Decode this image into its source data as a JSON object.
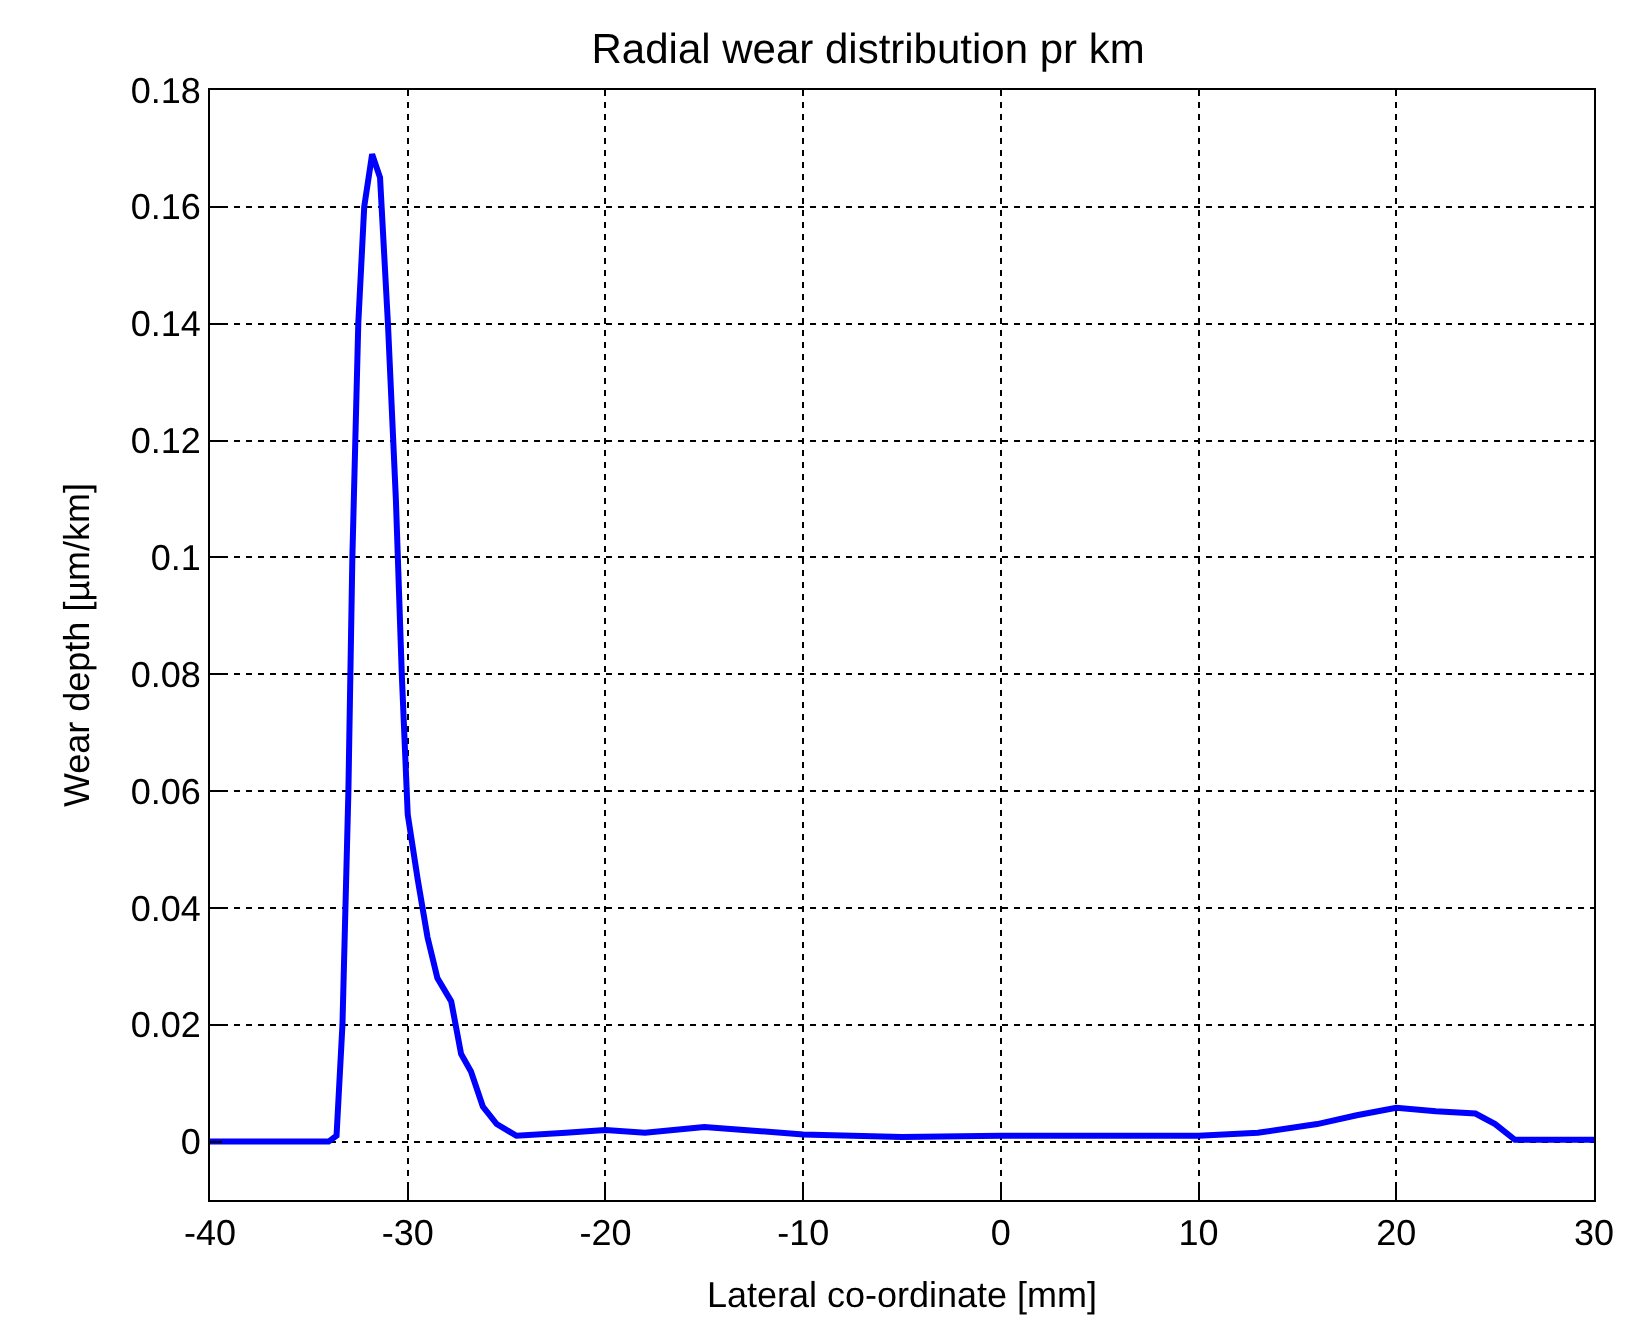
{
  "chart_data": {
    "type": "line",
    "title": "Radial wear distribution pr km",
    "xlabel": "Lateral co-ordinate [mm]",
    "ylabel": "Wear depth [µm/km]",
    "x": [
      -40,
      -34,
      -33.6,
      -33.3,
      -33.0,
      -32.8,
      -32.5,
      -32.2,
      -31.8,
      -31.4,
      -31.0,
      -30.6,
      -30.3,
      -30.0,
      -29.5,
      -29.0,
      -28.5,
      -27.8,
      -27.3,
      -26.8,
      -26.2,
      -25.5,
      -24.5,
      -22,
      -20,
      -18,
      -15,
      -13,
      -10,
      -5,
      0,
      5,
      10,
      13,
      16,
      18,
      20,
      22,
      24,
      25,
      26,
      30
    ],
    "series": [
      {
        "color": "#0000ff",
        "values": [
          0,
          0,
          0.001,
          0.02,
          0.06,
          0.1,
          0.14,
          0.16,
          0.169,
          0.165,
          0.14,
          0.11,
          0.08,
          0.056,
          0.045,
          0.035,
          0.028,
          0.024,
          0.015,
          0.012,
          0.006,
          0.003,
          0.001,
          0.0015,
          0.002,
          0.0015,
          0.0025,
          0.002,
          0.0012,
          0.0008,
          0.001,
          0.001,
          0.001,
          0.0015,
          0.003,
          0.0045,
          0.0058,
          0.0052,
          0.0048,
          0.003,
          0.0003,
          0.0003
        ]
      }
    ],
    "xlim": [
      -40,
      30
    ],
    "xticks": [
      -40,
      -30,
      -20,
      -10,
      0,
      10,
      20,
      30
    ],
    "ylim": [
      -0.01,
      0.18
    ],
    "yticks": [
      0,
      0.02,
      0.04,
      0.06,
      0.08,
      0.1,
      0.12,
      0.14,
      0.16,
      0.18
    ],
    "grid": true,
    "line_style": "solid",
    "marker": "none"
  }
}
